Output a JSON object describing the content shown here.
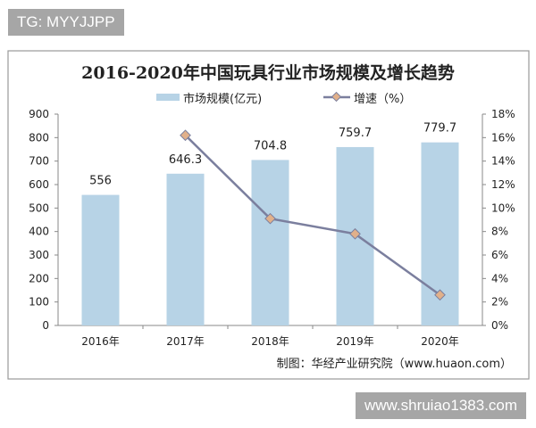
{
  "watermark_top": "TG: MYYJJPP",
  "watermark_bottom": "www.shruiao1383.com",
  "source": "制图：华经产业研究院（www.huaon.com）",
  "colors": {
    "bar": "#b7d3e6",
    "line": "#7b7f9e",
    "marker": "#e1b08a",
    "border": "#9a9a9a"
  },
  "chart_data": {
    "type": "bar+line",
    "title": "2016-2020年中国玩具行业市场规模及增长趋势",
    "categories": [
      "2016年",
      "2017年",
      "2018年",
      "2019年",
      "2020年"
    ],
    "series": [
      {
        "name": "市场规模(亿元)",
        "type": "bar",
        "axis": "left",
        "values": [
          556,
          646.3,
          704.8,
          759.7,
          779.7
        ],
        "labels": [
          "556",
          "646.3",
          "704.8",
          "759.7",
          "779.7"
        ]
      },
      {
        "name": "增速（%）",
        "type": "line",
        "axis": "right",
        "values": [
          null,
          16.2,
          9.1,
          7.8,
          2.6
        ]
      }
    ],
    "y_left": {
      "range": [
        0,
        900
      ],
      "ticks": [
        "0",
        "100",
        "200",
        "300",
        "400",
        "500",
        "600",
        "700",
        "800",
        "900"
      ]
    },
    "y_right": {
      "range": [
        0,
        18
      ],
      "ticks": [
        "0%",
        "2%",
        "4%",
        "6%",
        "8%",
        "10%",
        "12%",
        "14%",
        "16%",
        "18%"
      ]
    },
    "grid": false,
    "legend": "top-center"
  }
}
